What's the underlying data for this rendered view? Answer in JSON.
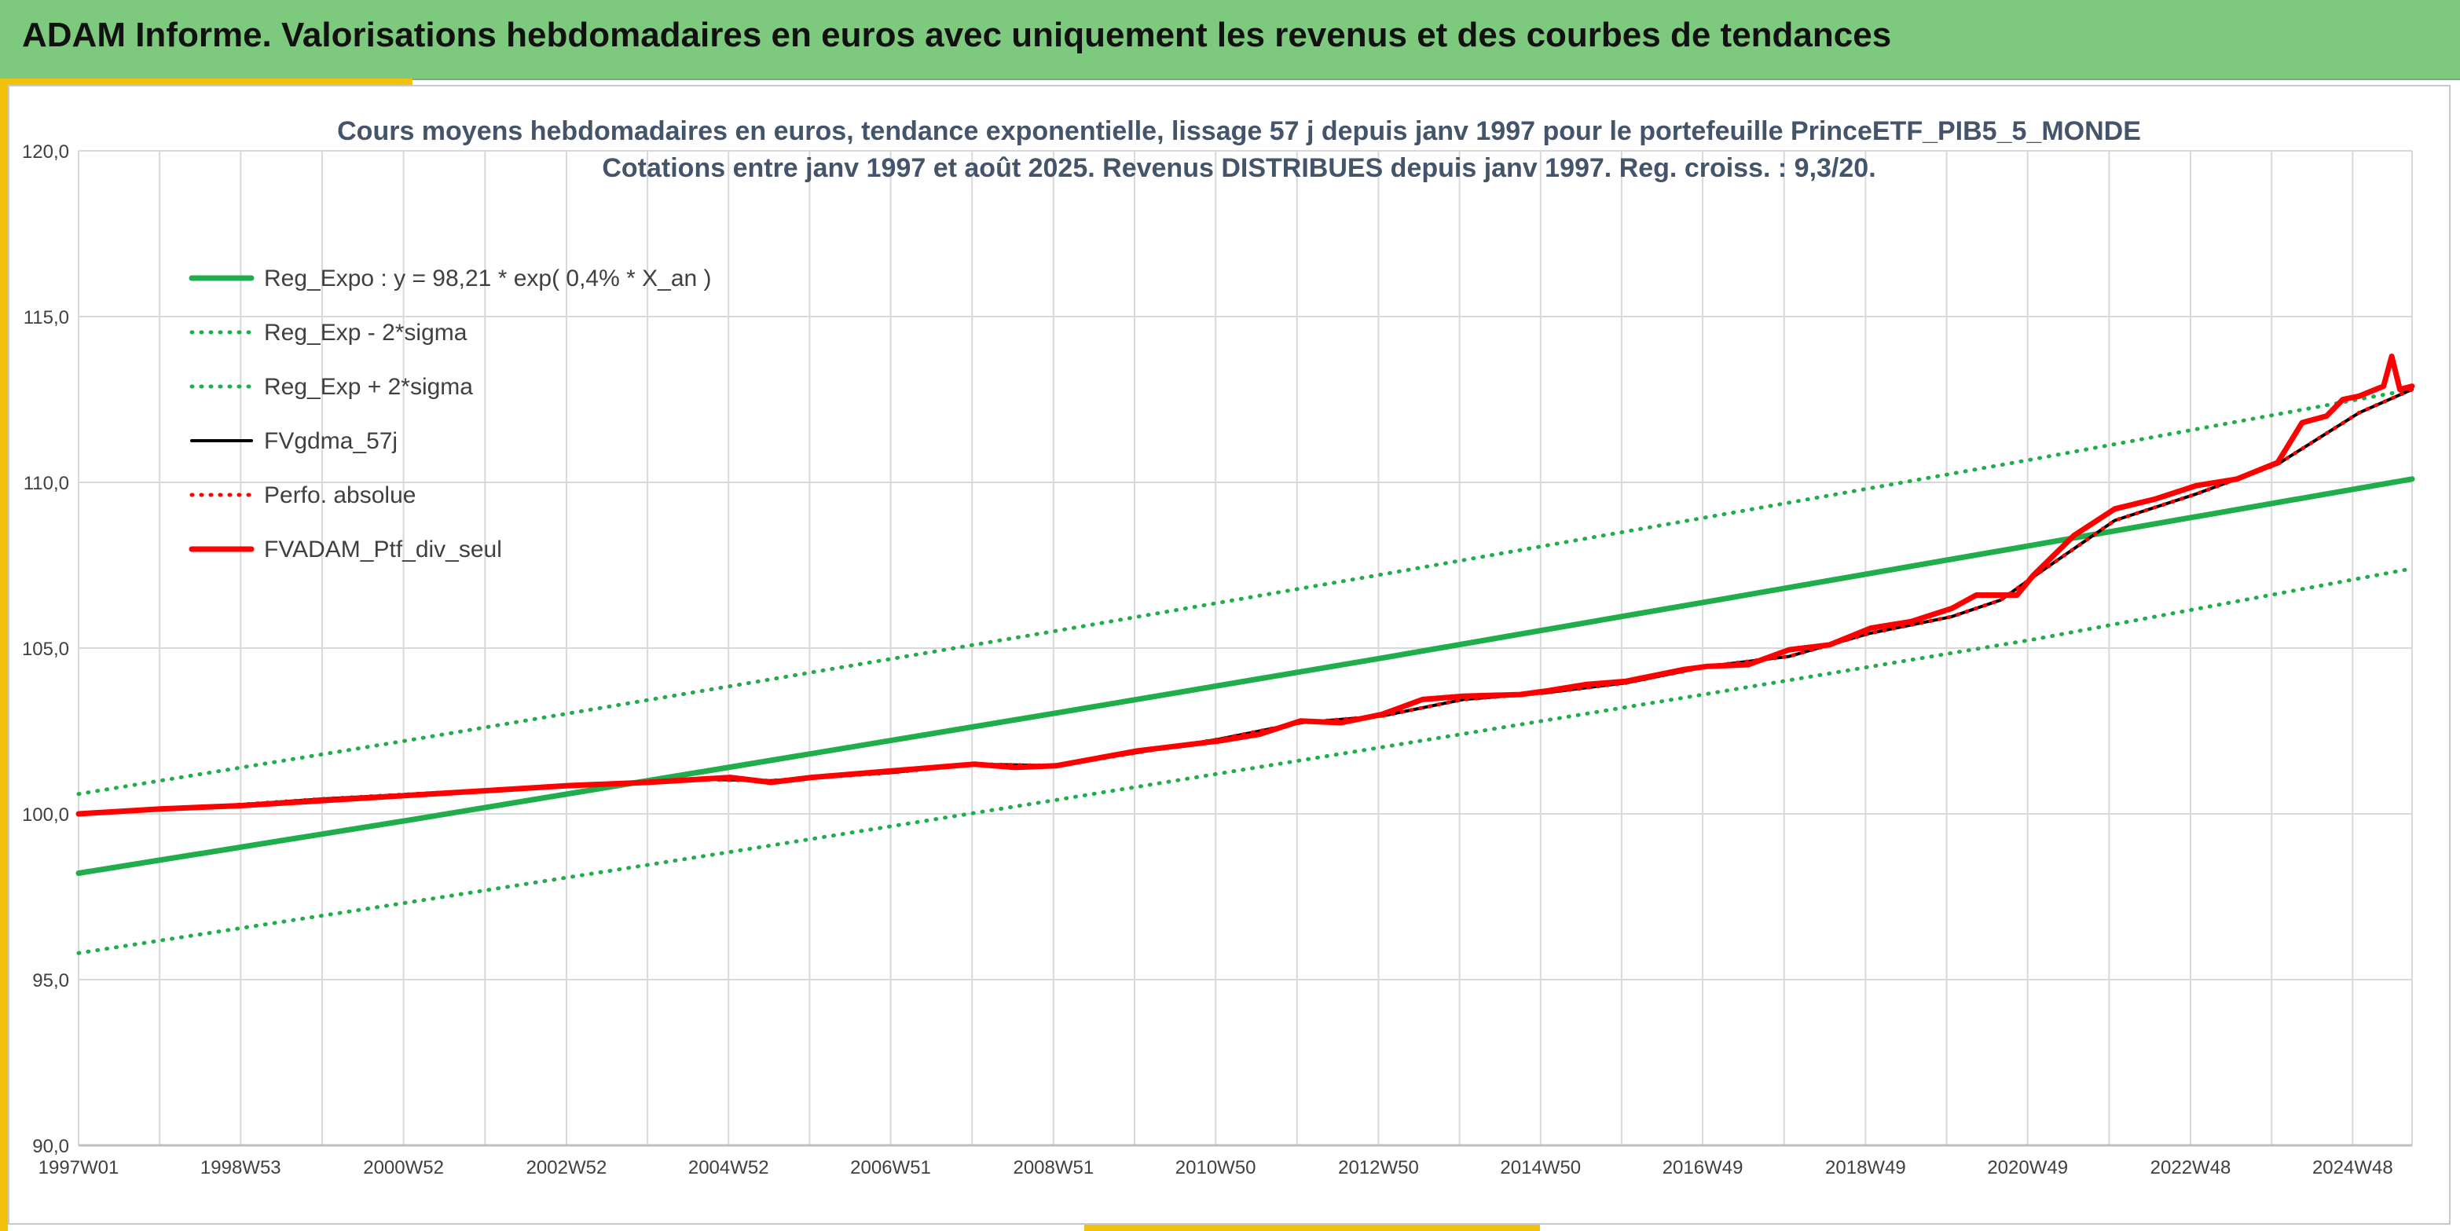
{
  "banner": {
    "title": "ADAM Informe. Valorisations hebdomadaires en euros avec uniquement les revenus et des courbes de tendances"
  },
  "colors": {
    "banner_bg": "#7dc97d",
    "accent_gold": "#f2c20a",
    "reg_green": "#1fae4b",
    "fv_black": "#000000",
    "ptf_red": "#ff0000",
    "title_text": "#44546a",
    "axis_text": "#404040"
  },
  "chart_data": {
    "type": "line",
    "title": "Cours moyens hebdomadaires en euros, tendance exponentielle, lissage 57 j depuis janv 1997 pour le portefeuille PrinceETF_PIB5_5_MONDE",
    "subtitle": "Cotations entre janv 1997 et août 2025. Revenus DISTRIBUES depuis janv 1997. Reg. croiss. : 9,3/20.",
    "xlabel": "",
    "ylabel": "",
    "ylim": [
      90,
      120
    ],
    "yticks": [
      "90,0",
      "95,0",
      "100,0",
      "105,0",
      "110,0",
      "115,0",
      "120,0"
    ],
    "xlim": [
      1997.0,
      2025.65
    ],
    "xticks": [
      {
        "label": "1997W01",
        "x": 1997.0
      },
      {
        "label": "1998W53",
        "x": 1998.99
      },
      {
        "label": "2000W52",
        "x": 2000.99
      },
      {
        "label": "2002W52",
        "x": 2002.99
      },
      {
        "label": "2004W52",
        "x": 2004.98
      },
      {
        "label": "2006W51",
        "x": 2006.97
      },
      {
        "label": "2008W51",
        "x": 2008.97
      },
      {
        "label": "2010W50",
        "x": 2010.96
      },
      {
        "label": "2012W50",
        "x": 2012.96
      },
      {
        "label": "2014W50",
        "x": 2014.95
      },
      {
        "label": "2016W49",
        "x": 2016.94
      },
      {
        "label": "2018W49",
        "x": 2018.94
      },
      {
        "label": "2020W49",
        "x": 2020.93
      },
      {
        "label": "2022W48",
        "x": 2022.93
      },
      {
        "label": "2024W48",
        "x": 2024.92
      }
    ],
    "grid": true,
    "legend_position": "top-left",
    "series": [
      {
        "name": "Reg_Expo : y = 98,21 * exp( 0,4% *  X_an )",
        "style": "solid",
        "color": "#1fae4b",
        "width": 7,
        "x": [
          1997.0,
          2001.0,
          2005.0,
          2009.0,
          2013.0,
          2017.0,
          2021.0,
          2025.65
        ],
        "y": [
          98.21,
          99.79,
          101.41,
          103.04,
          104.7,
          106.4,
          108.11,
          110.1
        ]
      },
      {
        "name": "Reg_Exp - 2*sigma",
        "style": "dotted",
        "color": "#1fae4b",
        "width": 5,
        "x": [
          1997.0,
          2001.0,
          2005.0,
          2009.0,
          2013.0,
          2017.0,
          2021.0,
          2025.65
        ],
        "y": [
          95.8,
          97.31,
          98.85,
          100.42,
          102.01,
          103.62,
          105.26,
          107.4
        ]
      },
      {
        "name": "Reg_Exp + 2*sigma",
        "style": "dotted",
        "color": "#1fae4b",
        "width": 5,
        "x": [
          1997.0,
          2001.0,
          2005.0,
          2009.0,
          2013.0,
          2017.0,
          2021.0,
          2025.65
        ],
        "y": [
          100.6,
          102.2,
          103.85,
          105.52,
          107.22,
          108.95,
          110.7,
          112.8
        ]
      },
      {
        "name": "FVgdma_57j",
        "style": "solid",
        "color": "#000000",
        "width": 4,
        "x": [
          1997.0,
          1998.5,
          2000.0,
          2001.5,
          2003.0,
          2004.5,
          2005.5,
          2007.0,
          2008.0,
          2009.0,
          2010.0,
          2011.0,
          2012.0,
          2013.0,
          2014.0,
          2015.0,
          2016.0,
          2017.0,
          2018.0,
          2019.0,
          2020.0,
          2020.6,
          2021.0,
          2022.0,
          2023.0,
          2024.0,
          2025.0,
          2025.65
        ],
        "y": [
          100.0,
          100.2,
          100.45,
          100.65,
          100.85,
          101.05,
          101.0,
          101.25,
          101.5,
          101.45,
          101.85,
          102.25,
          102.75,
          102.95,
          103.45,
          103.65,
          103.95,
          104.45,
          104.75,
          105.45,
          105.95,
          106.45,
          107.15,
          108.85,
          109.65,
          110.55,
          112.1,
          112.8
        ]
      },
      {
        "name": "Perfo. absolue",
        "style": "dotted",
        "color": "#ff0000",
        "width": 5,
        "x": [
          1997.0,
          1998.5,
          2000.0,
          2001.5,
          2003.0,
          2004.5,
          2005.5,
          2007.0,
          2008.0,
          2009.0,
          2010.0,
          2011.0,
          2012.0,
          2013.0,
          2014.0,
          2015.0,
          2016.0,
          2017.0,
          2018.0,
          2019.0,
          2020.0,
          2020.6,
          2021.0,
          2022.0,
          2023.0,
          2024.0,
          2025.0,
          2025.65
        ],
        "y": [
          100.0,
          100.2,
          100.45,
          100.65,
          100.85,
          101.05,
          101.0,
          101.25,
          101.5,
          101.45,
          101.85,
          102.25,
          102.75,
          102.95,
          103.45,
          103.65,
          103.95,
          104.45,
          104.75,
          105.45,
          105.95,
          106.45,
          107.15,
          108.85,
          109.65,
          110.55,
          112.1,
          112.8
        ]
      },
      {
        "name": "FVADAM_Ptf_div_seul",
        "style": "solid",
        "color": "#ff0000",
        "width": 7,
        "x": [
          1997.0,
          1998.0,
          1999.0,
          2000.0,
          2001.0,
          2002.0,
          2003.0,
          2004.0,
          2005.0,
          2005.5,
          2006.0,
          2007.0,
          2008.0,
          2008.5,
          2009.0,
          2010.0,
          2011.0,
          2011.5,
          2012.0,
          2012.5,
          2013.0,
          2013.5,
          2014.0,
          2014.7,
          2015.0,
          2015.5,
          2016.0,
          2016.7,
          2017.0,
          2017.5,
          2018.0,
          2018.5,
          2019.0,
          2019.5,
          2020.0,
          2020.3,
          2020.8,
          2021.0,
          2021.5,
          2022.0,
          2022.5,
          2023.0,
          2023.5,
          2024.0,
          2024.3,
          2024.6,
          2024.8,
          2025.0,
          2025.3,
          2025.4,
          2025.5,
          2025.65
        ],
        "y": [
          100.0,
          100.15,
          100.25,
          100.4,
          100.55,
          100.7,
          100.85,
          100.95,
          101.1,
          100.95,
          101.1,
          101.3,
          101.5,
          101.4,
          101.45,
          101.9,
          102.2,
          102.4,
          102.8,
          102.75,
          103.0,
          103.45,
          103.55,
          103.6,
          103.7,
          103.9,
          104.0,
          104.35,
          104.45,
          104.5,
          104.95,
          105.1,
          105.6,
          105.8,
          106.2,
          106.6,
          106.6,
          107.2,
          108.4,
          109.2,
          109.5,
          109.9,
          110.1,
          110.6,
          111.8,
          112.0,
          112.5,
          112.6,
          112.9,
          113.8,
          112.8,
          112.9
        ]
      }
    ]
  }
}
